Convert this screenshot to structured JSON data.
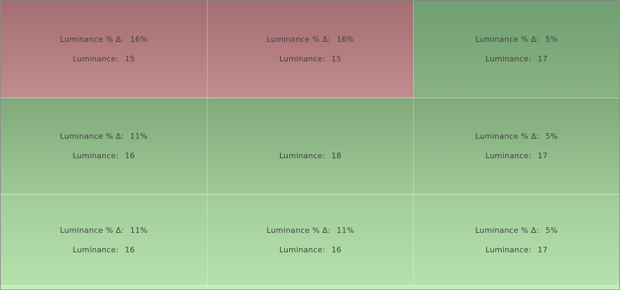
{
  "meta": {
    "description_labels": {
      "delta": "Luminance % Δ:",
      "luminance": "Luminance:"
    }
  },
  "colors": {
    "tones": {
      "red": {
        "top": "#a46d71",
        "bottom": "#c28c8f"
      },
      "green0": {
        "top": "#6f9f72",
        "bottom": "#8ab383"
      },
      "green1": {
        "top": "#81a97c",
        "bottom": "#9ec896"
      },
      "green2": {
        "top": "#a2cd9a",
        "bottom": "#b5e1ad"
      },
      "footer": {
        "top": "#c0e8b8",
        "bottom": "#cfeec7"
      }
    },
    "text": "#404040",
    "outer_border": "#7f7f7f",
    "grid_line": "rgba(255,255,255,0.32)"
  },
  "grid": {
    "rows": [
      {
        "cells": [
          {
            "tone": "red",
            "delta_label": "Luminance % Δ:",
            "delta_value": "16%",
            "lum_label": "Luminance:",
            "lum_value": "15"
          },
          {
            "tone": "red",
            "delta_label": "Luminance % Δ:",
            "delta_value": "16%",
            "lum_label": "Luminance:",
            "lum_value": "15"
          },
          {
            "tone": "green0",
            "delta_label": "Luminance % Δ:",
            "delta_value": "5%",
            "lum_label": "Luminance:",
            "lum_value": "17"
          }
        ]
      },
      {
        "cells": [
          {
            "tone": "green1",
            "delta_label": "Luminance % Δ:",
            "delta_value": "11%",
            "lum_label": "Luminance:",
            "lum_value": "16"
          },
          {
            "tone": "green1",
            "delta_label": "",
            "delta_value": "",
            "lum_label": "Luminance:",
            "lum_value": "18"
          },
          {
            "tone": "green1",
            "delta_label": "Luminance % Δ:",
            "delta_value": "5%",
            "lum_label": "Luminance:",
            "lum_value": "17"
          }
        ]
      },
      {
        "cells": [
          {
            "tone": "green2",
            "delta_label": "Luminance % Δ:",
            "delta_value": "11%",
            "lum_label": "Luminance:",
            "lum_value": "16"
          },
          {
            "tone": "green2",
            "delta_label": "Luminance % Δ:",
            "delta_value": "11%",
            "lum_label": "Luminance:",
            "lum_value": "16"
          },
          {
            "tone": "green2",
            "delta_label": "Luminance % Δ:",
            "delta_value": "5%",
            "lum_label": "Luminance:",
            "lum_value": "17"
          }
        ]
      }
    ]
  },
  "chart_data": {
    "type": "heatmap",
    "rows": 3,
    "cols": 3,
    "luminance": [
      [
        15,
        15,
        17
      ],
      [
        16,
        18,
        17
      ],
      [
        16,
        16,
        17
      ]
    ],
    "luminance_pct_delta": [
      [
        "16%",
        "16%",
        "5%"
      ],
      [
        "11%",
        null,
        "5%"
      ],
      [
        "11%",
        "11%",
        "5%"
      ]
    ],
    "reference_cell": {
      "row": 1,
      "col": 1,
      "note_visible_text_only": "center cell shows only Luminance: 18"
    },
    "legend_position": "none",
    "grid": "on"
  }
}
